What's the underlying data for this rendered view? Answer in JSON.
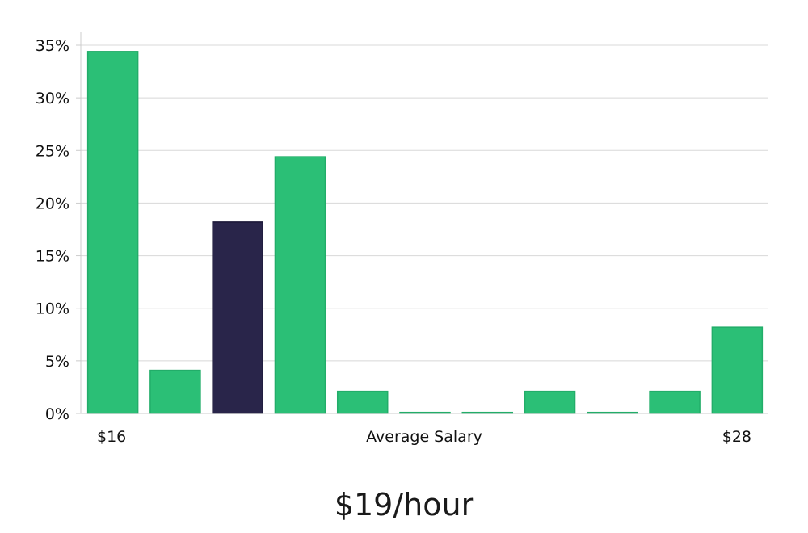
{
  "headline": "$19/hour",
  "chart_data": {
    "type": "bar",
    "title": "",
    "xlabel": "Average Salary",
    "ylabel": "",
    "x_range_labels": {
      "min": "$16",
      "max": "$28"
    },
    "ylim": [
      0,
      35
    ],
    "yticks": [
      0,
      5,
      10,
      15,
      20,
      25,
      30,
      35
    ],
    "ytick_labels": [
      "0%",
      "5%",
      "10%",
      "15%",
      "20%",
      "25%",
      "30%",
      "35%"
    ],
    "grid": true,
    "values": [
      34.4,
      4.1,
      18.2,
      24.4,
      2.1,
      0.1,
      0.1,
      2.1,
      0.1,
      2.1,
      8.2
    ],
    "highlight_index": 2,
    "colors": {
      "bar": "#2bbf76",
      "highlight": "#29254a",
      "grid": "#d8d8d8",
      "axis": "#cccccc"
    }
  }
}
